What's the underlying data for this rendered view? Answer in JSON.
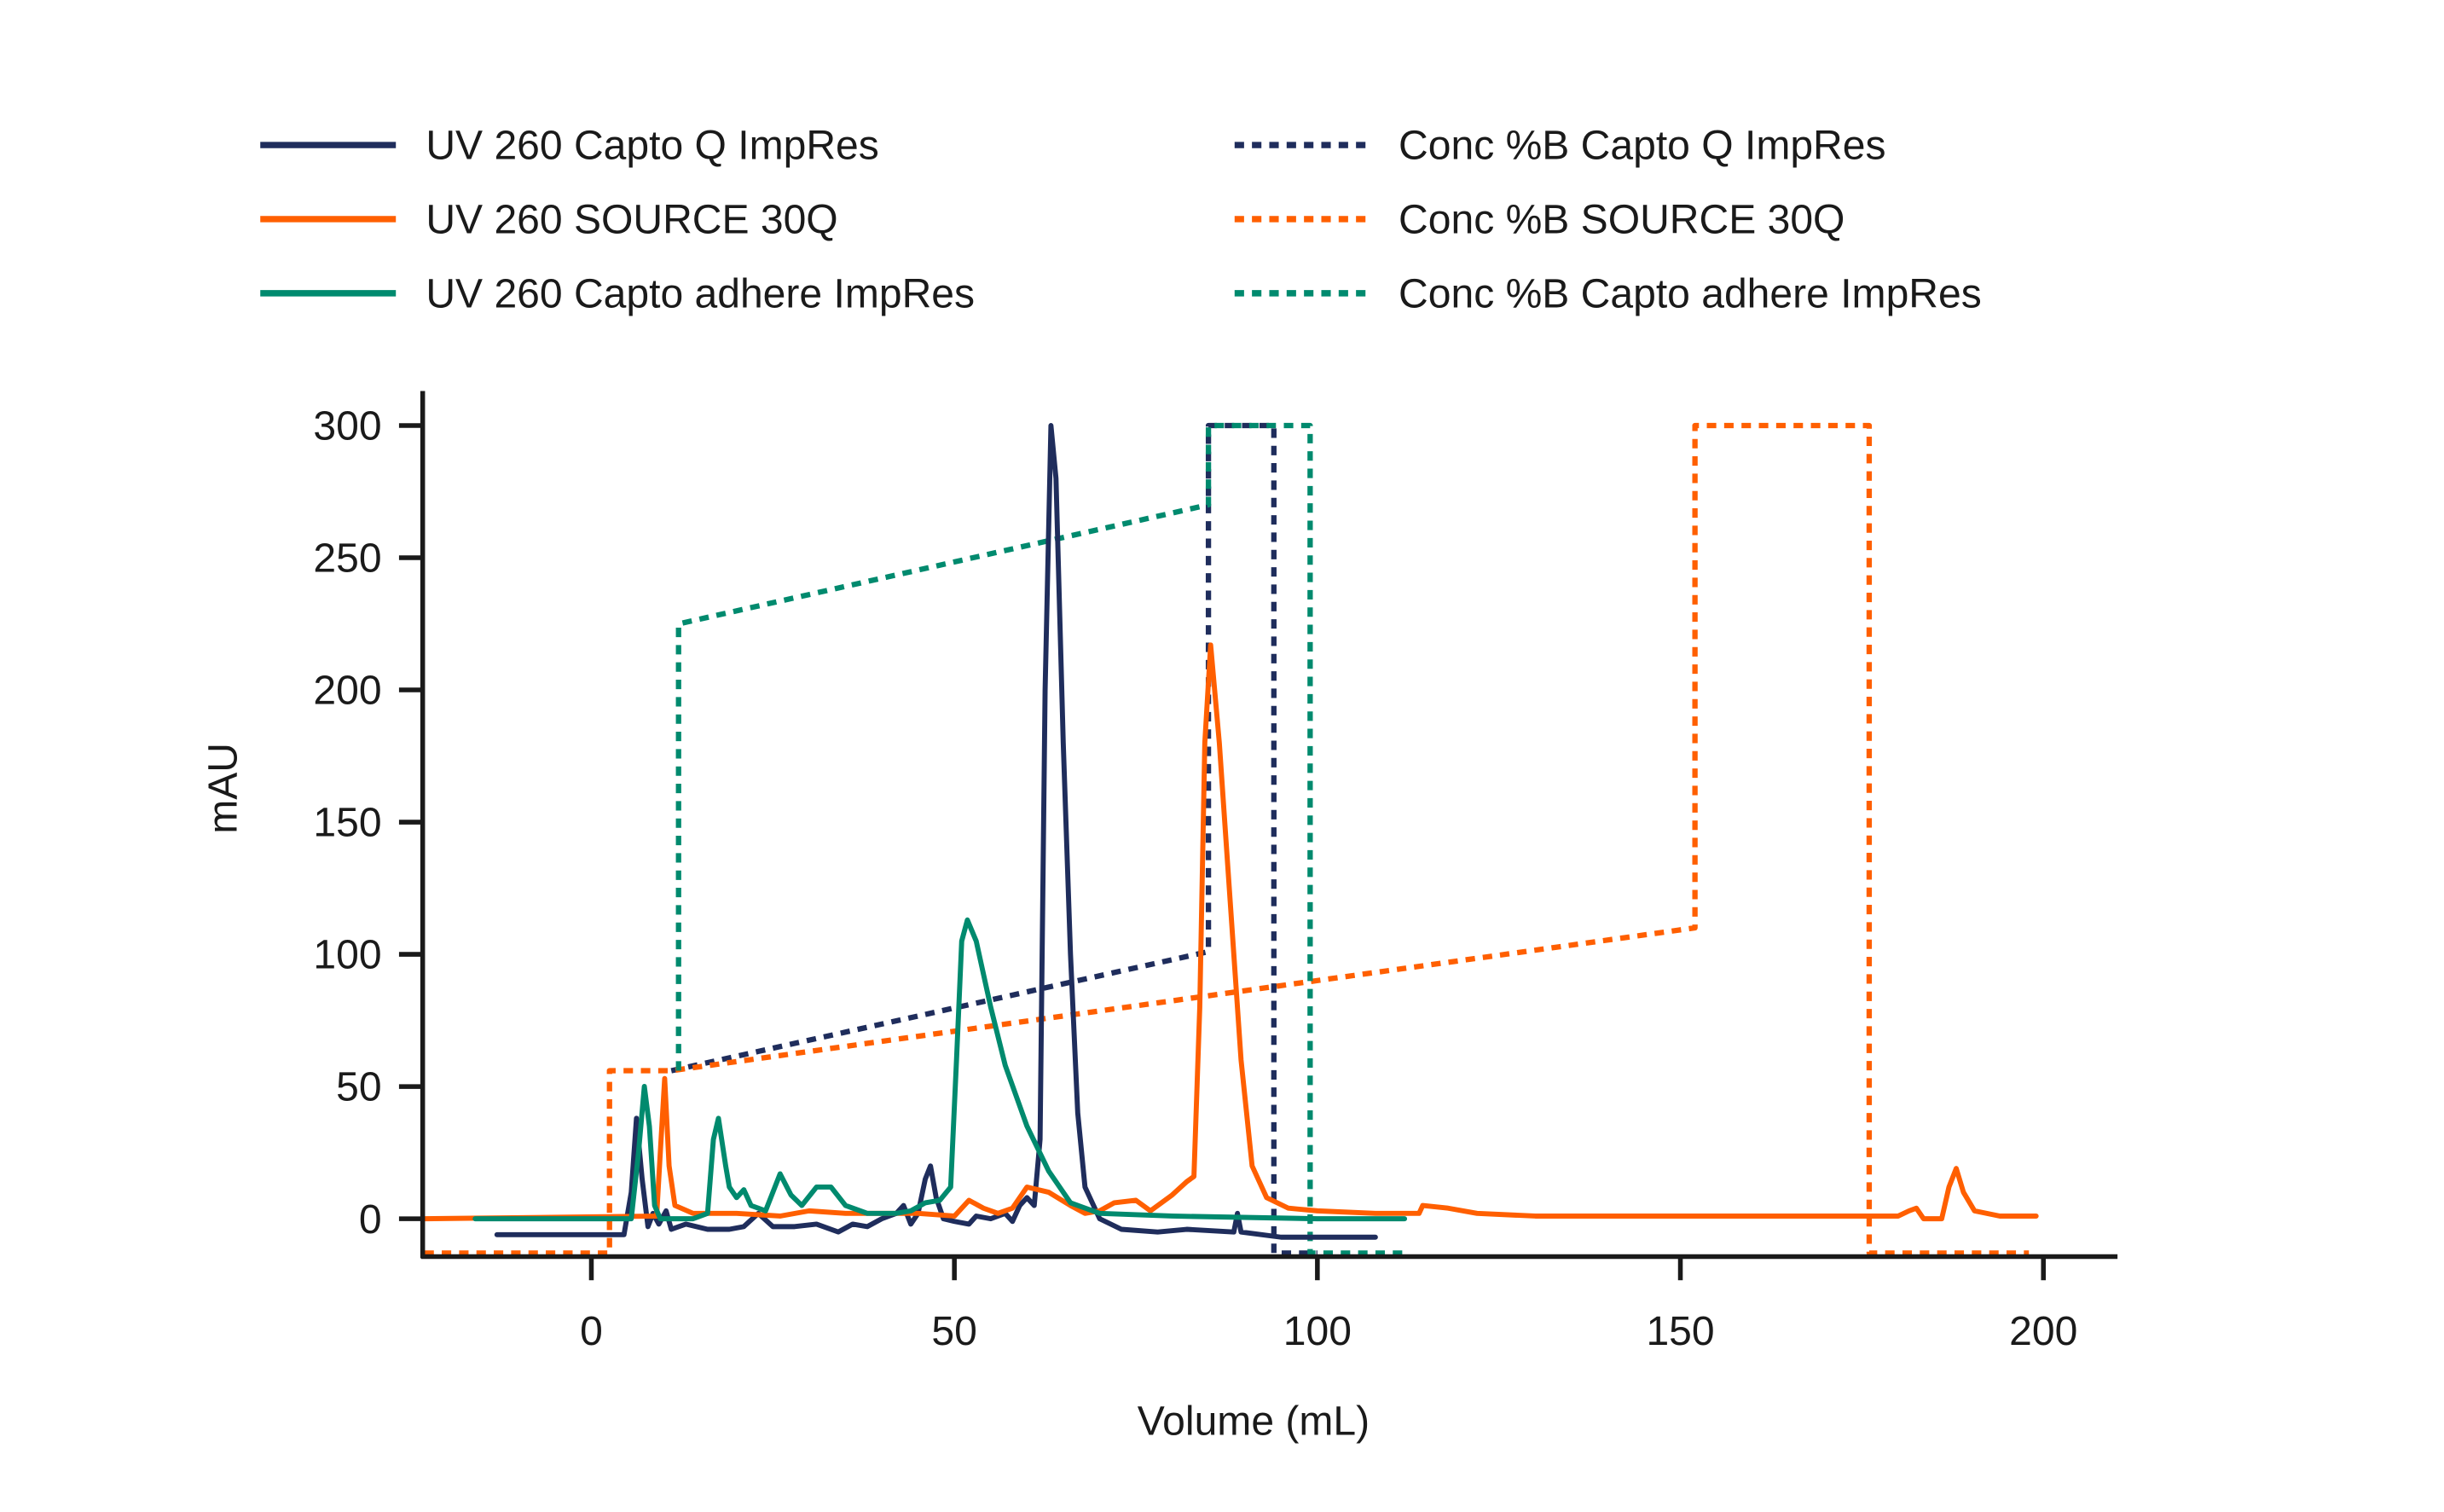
{
  "chart_data": {
    "type": "line",
    "title": "",
    "xlabel": "Volume (mL)",
    "ylabel": "mAU",
    "xlim": [
      -23,
      210
    ],
    "ylim": [
      -14,
      311
    ],
    "xticks": [
      0,
      50,
      100,
      150,
      200
    ],
    "yticks": [
      0,
      50,
      100,
      150,
      200,
      250,
      300
    ],
    "grid": false,
    "legend_position": "top",
    "series": [
      {
        "name": "UV 260 Capto Q ImpRes",
        "color": "#1f2d5c",
        "style": "solid",
        "points": [
          [
            -13,
            -6
          ],
          [
            4.5,
            -6
          ],
          [
            5.5,
            10
          ],
          [
            6.2,
            38
          ],
          [
            7,
            15
          ],
          [
            7.8,
            -3
          ],
          [
            8.5,
            2
          ],
          [
            9.3,
            -2
          ],
          [
            10.3,
            3
          ],
          [
            11,
            -4
          ],
          [
            13,
            -2
          ],
          [
            16,
            -4
          ],
          [
            19,
            -4
          ],
          [
            21,
            -3
          ],
          [
            23,
            2
          ],
          [
            25,
            -3
          ],
          [
            28,
            -3
          ],
          [
            31,
            -2
          ],
          [
            34,
            -5
          ],
          [
            36,
            -2
          ],
          [
            38,
            -3
          ],
          [
            40,
            0
          ],
          [
            42,
            2
          ],
          [
            43,
            5
          ],
          [
            44,
            -2
          ],
          [
            45,
            2
          ],
          [
            46,
            15
          ],
          [
            46.7,
            20
          ],
          [
            47.5,
            8
          ],
          [
            48.5,
            0
          ],
          [
            50,
            -1
          ],
          [
            52,
            -2
          ],
          [
            53,
            1
          ],
          [
            55,
            0
          ],
          [
            57,
            2
          ],
          [
            58,
            -1
          ],
          [
            59,
            5
          ],
          [
            60,
            8
          ],
          [
            61,
            5
          ],
          [
            61.8,
            30
          ],
          [
            62.5,
            200
          ],
          [
            63.3,
            300
          ],
          [
            64,
            280
          ],
          [
            65,
            180
          ],
          [
            66,
            100
          ],
          [
            67,
            40
          ],
          [
            68,
            12
          ],
          [
            70,
            0
          ],
          [
            73,
            -4
          ],
          [
            78,
            -5
          ],
          [
            82,
            -4
          ],
          [
            88.5,
            -5
          ],
          [
            89,
            2
          ],
          [
            89.5,
            -5
          ],
          [
            95,
            -7
          ],
          [
            108,
            -7
          ]
        ]
      },
      {
        "name": "UV 260 SOURCE 30Q",
        "color": "#ff5f00",
        "style": "solid",
        "points": [
          [
            -23,
            0
          ],
          [
            9,
            1
          ],
          [
            9.6,
            30
          ],
          [
            10.1,
            53
          ],
          [
            10.7,
            20
          ],
          [
            11.5,
            5
          ],
          [
            14,
            2
          ],
          [
            20,
            2
          ],
          [
            26,
            1
          ],
          [
            30,
            3
          ],
          [
            35,
            2
          ],
          [
            40,
            2
          ],
          [
            45,
            2
          ],
          [
            50,
            1
          ],
          [
            52,
            7
          ],
          [
            54,
            4
          ],
          [
            56,
            2
          ],
          [
            58,
            4
          ],
          [
            60,
            12
          ],
          [
            63,
            10
          ],
          [
            66,
            5
          ],
          [
            68,
            2
          ],
          [
            70,
            3
          ],
          [
            72,
            6
          ],
          [
            75,
            7
          ],
          [
            77,
            3
          ],
          [
            80,
            9
          ],
          [
            82,
            14
          ],
          [
            83,
            16
          ],
          [
            83.8,
            80
          ],
          [
            84.5,
            180
          ],
          [
            85.3,
            217
          ],
          [
            86.5,
            180
          ],
          [
            88,
            120
          ],
          [
            89.5,
            60
          ],
          [
            91,
            20
          ],
          [
            93,
            8
          ],
          [
            96,
            4
          ],
          [
            100,
            3
          ],
          [
            108,
            2
          ],
          [
            114,
            2
          ],
          [
            114.5,
            5
          ],
          [
            118,
            4
          ],
          [
            122,
            2
          ],
          [
            130,
            1
          ],
          [
            160,
            1
          ],
          [
            180,
            1
          ],
          [
            181.5,
            3
          ],
          [
            182.5,
            4
          ],
          [
            183.5,
            0
          ],
          [
            186,
            0
          ],
          [
            187,
            12
          ],
          [
            188,
            19
          ],
          [
            189,
            10
          ],
          [
            190.5,
            3
          ],
          [
            194,
            1
          ],
          [
            199,
            1
          ]
        ]
      },
      {
        "name": "UV 260 Capto adhere ImpRes",
        "color": "#008a6e",
        "style": "solid",
        "points": [
          [
            -16,
            0
          ],
          [
            5.5,
            0
          ],
          [
            6.5,
            25
          ],
          [
            7.3,
            50
          ],
          [
            8,
            35
          ],
          [
            8.7,
            5
          ],
          [
            9.5,
            0
          ],
          [
            14,
            0
          ],
          [
            16,
            2
          ],
          [
            16.8,
            30
          ],
          [
            17.5,
            38
          ],
          [
            18.5,
            20
          ],
          [
            19,
            12
          ],
          [
            20,
            8
          ],
          [
            21,
            11
          ],
          [
            22,
            5
          ],
          [
            24,
            3
          ],
          [
            26,
            17
          ],
          [
            27.5,
            9
          ],
          [
            29,
            5
          ],
          [
            31,
            12
          ],
          [
            33,
            12
          ],
          [
            35,
            5
          ],
          [
            38,
            2
          ],
          [
            42,
            2
          ],
          [
            44,
            3
          ],
          [
            46,
            6
          ],
          [
            48,
            7
          ],
          [
            49.5,
            12
          ],
          [
            50.3,
            60
          ],
          [
            51,
            105
          ],
          [
            51.8,
            113
          ],
          [
            53,
            105
          ],
          [
            55,
            80
          ],
          [
            57,
            58
          ],
          [
            60,
            35
          ],
          [
            63,
            18
          ],
          [
            66,
            6
          ],
          [
            70,
            2
          ],
          [
            80,
            1
          ],
          [
            100,
            0
          ],
          [
            112,
            0
          ]
        ]
      },
      {
        "name": "Conc %B Capto Q ImpRes",
        "color": "#1f2d5c",
        "style": "dotted",
        "points": [
          [
            11,
            56
          ],
          [
            85,
            101
          ],
          [
            85,
            300
          ],
          [
            94,
            300
          ],
          [
            94,
            -13
          ],
          [
            100,
            -13
          ]
        ]
      },
      {
        "name": "Conc %B SOURCE 30Q",
        "color": "#ff5f00",
        "style": "dotted",
        "points": [
          [
            -23,
            -13
          ],
          [
            2.5,
            -13
          ],
          [
            2.5,
            56
          ],
          [
            11,
            56
          ],
          [
            152,
            110
          ],
          [
            152,
            300
          ],
          [
            176,
            300
          ],
          [
            176,
            -13
          ],
          [
            198,
            -13
          ]
        ]
      },
      {
        "name": "Conc %B Capto adhere ImpRes",
        "color": "#008a6e",
        "style": "dotted",
        "points": [
          [
            12,
            56
          ],
          [
            12,
            225
          ],
          [
            85,
            270
          ],
          [
            85,
            300
          ],
          [
            99,
            300
          ],
          [
            99,
            -13
          ],
          [
            112,
            -13
          ]
        ]
      }
    ]
  }
}
